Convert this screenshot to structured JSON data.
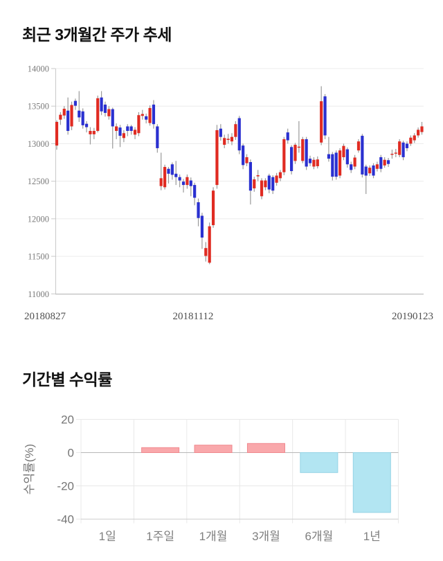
{
  "page": {
    "background": "#ffffff"
  },
  "chart_data": [
    {
      "type": "candlestick",
      "title": "최근 3개월간 주가 추세",
      "x_axis_labels": [
        "20180827",
        "20181112",
        "20190123"
      ],
      "y_ticks": [
        14000,
        13500,
        13000,
        12500,
        12000,
        11500,
        11000
      ],
      "ylim": [
        11000,
        14000
      ],
      "grid": "horizontal",
      "colors": {
        "up_candle": "#e02b22",
        "down_candle": "#2a30d0",
        "wick": "#999999",
        "gridline": "#ececec",
        "axis_line": "#c9c9c9",
        "bottom_axis": "#b5b5b5",
        "y_tick_label": "#7a7a7a",
        "x_tick_label": "#4f4f4f"
      },
      "candles_ohlc_note": "each candle = [open, close, low, high]",
      "candles": [
        [
          12975,
          13290,
          12920,
          13310
        ],
        [
          13320,
          13385,
          13250,
          13420
        ],
        [
          13375,
          13465,
          13330,
          13500
        ],
        [
          13440,
          13170,
          13120,
          13615
        ],
        [
          13230,
          13515,
          13180,
          13560
        ],
        [
          13570,
          13505,
          13450,
          13600
        ],
        [
          13440,
          13350,
          13290,
          13700
        ],
        [
          13430,
          13245,
          13200,
          13470
        ],
        [
          13265,
          13220,
          13150,
          13300
        ],
        [
          13125,
          13170,
          12990,
          13220
        ],
        [
          13125,
          13170,
          13060,
          13210
        ],
        [
          13170,
          13605,
          13150,
          13640
        ],
        [
          13615,
          13430,
          13380,
          13700
        ],
        [
          13520,
          13410,
          13360,
          13560
        ],
        [
          13365,
          13460,
          13320,
          13500
        ],
        [
          13460,
          13230,
          12935,
          13480
        ],
        [
          13170,
          13230,
          13060,
          13270
        ],
        [
          13215,
          13105,
          12955,
          13250
        ],
        [
          13075,
          13140,
          13020,
          13180
        ],
        [
          13230,
          13170,
          13100,
          13260
        ],
        [
          13230,
          13170,
          13120,
          13250
        ],
        [
          13120,
          13185,
          13060,
          13220
        ],
        [
          13140,
          13380,
          13100,
          13420
        ],
        [
          13370,
          13395,
          13320,
          13450
        ],
        [
          13365,
          13320,
          13270,
          13400
        ],
        [
          13275,
          13475,
          13240,
          13510
        ],
        [
          13520,
          13260,
          13200,
          13580
        ],
        [
          13230,
          12940,
          12880,
          13260
        ],
        [
          12435,
          12540,
          12380,
          12880
        ],
        [
          12420,
          12690,
          12390,
          12720
        ],
        [
          12665,
          12600,
          12470,
          12690
        ],
        [
          12725,
          12585,
          12520,
          12750
        ],
        [
          12600,
          12555,
          12450,
          12770
        ],
        [
          12555,
          12510,
          12420,
          12590
        ],
        [
          12495,
          12450,
          12350,
          12530
        ],
        [
          12450,
          12555,
          12400,
          12590
        ],
        [
          12510,
          12435,
          12300,
          12550
        ],
        [
          12450,
          12280,
          12180,
          12480
        ],
        [
          12220,
          12010,
          11900,
          12270
        ],
        [
          12040,
          11750,
          11600,
          12080
        ],
        [
          11505,
          11610,
          11430,
          11690
        ],
        [
          11415,
          11900,
          11395,
          11950
        ],
        [
          11915,
          12375,
          11880,
          12420
        ],
        [
          12450,
          13180,
          12400,
          13250
        ],
        [
          13200,
          13090,
          13040,
          13260
        ],
        [
          12985,
          13075,
          12940,
          13120
        ],
        [
          13050,
          13065,
          13000,
          13130
        ],
        [
          13030,
          13090,
          12980,
          13140
        ],
        [
          13090,
          13260,
          13050,
          13300
        ],
        [
          13340,
          12910,
          12860,
          13370
        ],
        [
          12975,
          12715,
          12660,
          13000
        ],
        [
          12740,
          12820,
          12700,
          12860
        ],
        [
          12755,
          12375,
          12190,
          12790
        ],
        [
          12405,
          12525,
          12360,
          12560
        ],
        [
          12565,
          12580,
          12500,
          12650
        ],
        [
          12300,
          12510,
          12260,
          12540
        ],
        [
          12420,
          12510,
          12380,
          12540
        ],
        [
          12575,
          12390,
          12340,
          12600
        ],
        [
          12555,
          12375,
          12330,
          12580
        ],
        [
          12480,
          12575,
          12440,
          12610
        ],
        [
          12540,
          12620,
          12500,
          12650
        ],
        [
          12620,
          13060,
          12580,
          13090
        ],
        [
          13150,
          13045,
          13000,
          13200
        ],
        [
          12955,
          12635,
          12590,
          12980
        ],
        [
          12770,
          12985,
          12730,
          13010
        ],
        [
          12950,
          12960,
          12880,
          13300
        ],
        [
          12770,
          13060,
          12740,
          13090
        ],
        [
          13060,
          12695,
          12650,
          13090
        ],
        [
          12800,
          12740,
          12700,
          12840
        ],
        [
          12695,
          12785,
          12660,
          12820
        ],
        [
          12700,
          12790,
          12670,
          12830
        ],
        [
          13015,
          13565,
          12980,
          13765
        ],
        [
          13630,
          13110,
          13060,
          13660
        ],
        [
          12860,
          12800,
          12760,
          13090
        ],
        [
          12860,
          12560,
          12510,
          12890
        ],
        [
          12880,
          12560,
          12520,
          12910
        ],
        [
          12575,
          12910,
          12540,
          12940
        ],
        [
          12820,
          12970,
          12780,
          13000
        ],
        [
          12925,
          12725,
          12680,
          12950
        ],
        [
          12725,
          12650,
          12610,
          12760
        ],
        [
          12695,
          12815,
          12660,
          12850
        ],
        [
          12910,
          13030,
          12880,
          13060
        ],
        [
          13105,
          12590,
          12550,
          13130
        ],
        [
          12695,
          12575,
          12330,
          12720
        ],
        [
          12605,
          12680,
          12570,
          12710
        ],
        [
          12710,
          12575,
          12540,
          12740
        ],
        [
          12665,
          12725,
          12630,
          12760
        ],
        [
          12820,
          12665,
          12620,
          12850
        ],
        [
          12710,
          12785,
          12680,
          12820
        ],
        [
          12780,
          12730,
          12690,
          12810
        ],
        [
          12860,
          12865,
          12800,
          12920
        ],
        [
          12875,
          12880,
          12820,
          12930
        ],
        [
          12850,
          13030,
          12820,
          13060
        ],
        [
          13015,
          12820,
          12780,
          13040
        ],
        [
          13000,
          12940,
          12900,
          13030
        ],
        [
          13000,
          13080,
          12970,
          13110
        ],
        [
          13045,
          13110,
          13010,
          13140
        ],
        [
          13110,
          13185,
          13080,
          13215
        ],
        [
          13155,
          13230,
          13120,
          13290
        ]
      ]
    },
    {
      "type": "bar",
      "title": "기간별 수익률",
      "ylabel": "수익률(%)",
      "categories": [
        "1일",
        "1주일",
        "1개월",
        "3개월",
        "6개월",
        "1년"
      ],
      "values": [
        0,
        3,
        4.5,
        5.5,
        -12,
        -36
      ],
      "y_ticks": [
        20,
        0,
        -20,
        -40
      ],
      "ylim": [
        -40,
        20
      ],
      "grid": "both",
      "legend": "none",
      "colors": {
        "positive_bar": "#f9a8ab",
        "positive_border": "#f0888e",
        "negative_bar": "#b2e5f2",
        "negative_border": "#94d3e5",
        "gridline": "#e8e8e8",
        "zero_line": "#b8b8b8",
        "axis_line": "#cfcfcf",
        "tick_label": "#757575",
        "category_label": "#7f7f7f"
      }
    }
  ]
}
